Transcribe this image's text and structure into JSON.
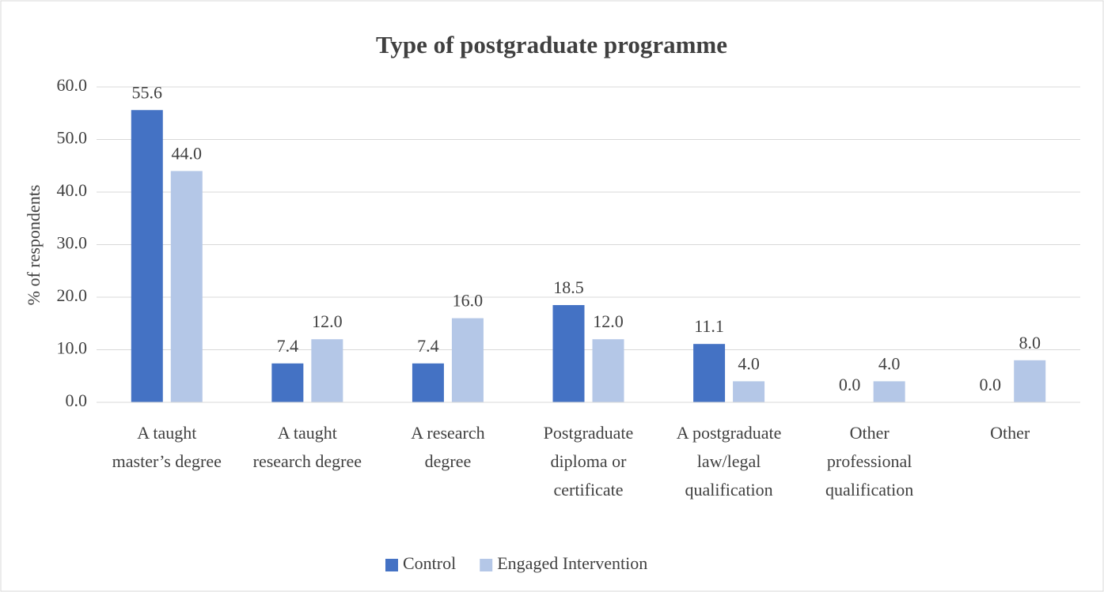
{
  "chart_data": {
    "type": "bar",
    "title": "Type of postgraduate programme",
    "y_label": "% of respondents",
    "categories": [
      "A taught master’s degree",
      "A taught research degree",
      "A research degree",
      "Postgraduate diploma or certificate",
      "A postgraduate law/legal qualification",
      "Other professional qualification",
      "Other"
    ],
    "series": [
      {
        "name": "Control",
        "color": "#4472c4",
        "values": [
          55.6,
          7.4,
          7.4,
          18.5,
          11.1,
          0,
          0
        ],
        "value_labels": [
          "55.6",
          "7.4",
          "7.4",
          "18.5",
          "11.1",
          "0.0",
          "0.0"
        ]
      },
      {
        "name": "Engaged Intervention",
        "color": "#b4c7e7",
        "values": [
          44,
          12,
          16,
          12,
          4,
          4,
          8
        ],
        "value_labels": [
          "44.0",
          "12.0",
          "16.0",
          "12.0",
          "4.0",
          "4.0",
          "8.0"
        ]
      }
    ],
    "ylim": [
      0,
      60
    ],
    "yticks": [
      {
        "value": 0,
        "label": "0.0"
      },
      {
        "value": 10,
        "label": "10.0"
      },
      {
        "value": 20,
        "label": "20.0"
      },
      {
        "value": 30,
        "label": "30.0"
      },
      {
        "value": 40,
        "label": "40.0"
      },
      {
        "value": 50,
        "label": "50.0"
      },
      {
        "value": 60,
        "label": "60.0"
      }
    ],
    "grid": true,
    "legend": "bottom"
  }
}
